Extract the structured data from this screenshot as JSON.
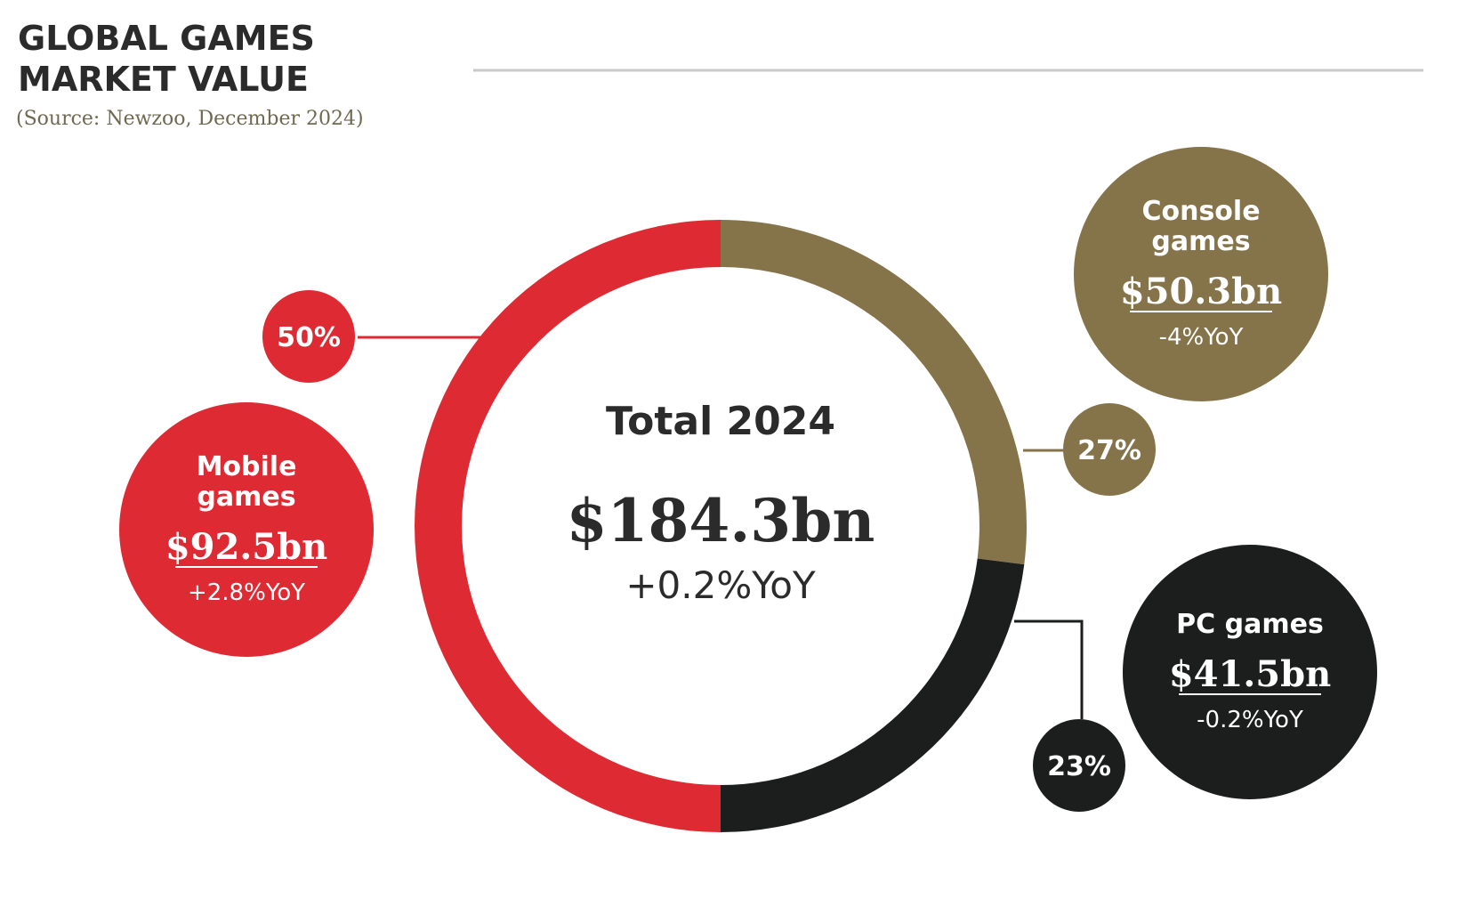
{
  "header": {
    "title_line1": "GLOBAL GAMES",
    "title_line2": "MARKET VALUE",
    "source": "(Source: Newzoo, December 2024)"
  },
  "center": {
    "label": "Total 2024",
    "value": "$184.3bn",
    "yoy": "+0.2%YoY"
  },
  "chart_data": {
    "type": "pie",
    "title": "GLOBAL GAMES MARKET VALUE",
    "subtitle": "(Source: Newzoo, December 2024)",
    "total": 184.3,
    "total_label": "$184.3bn",
    "total_yoy": "+0.2%YoY",
    "unit": "bn USD",
    "series": [
      {
        "key": "console",
        "name": "Console games",
        "name_lines": [
          "Console",
          "games"
        ],
        "value": 50.3,
        "value_label": "$50.3bn",
        "share": 27,
        "share_label": "27%",
        "yoy": "-4%YoY",
        "color": "#857349"
      },
      {
        "key": "pc",
        "name": "PC games",
        "name_lines": [
          "PC games"
        ],
        "value": 41.5,
        "value_label": "$41.5bn",
        "share": 23,
        "share_label": "23%",
        "yoy": "-0.2%YoY",
        "color": "#1b1e1c"
      },
      {
        "key": "mobile",
        "name": "Mobile games",
        "name_lines": [
          "Mobile",
          "games"
        ],
        "value": 92.5,
        "value_label": "$92.5bn",
        "share": 50,
        "share_label": "50%",
        "yoy": "+2.8%YoY",
        "color": "#de2a32"
      }
    ]
  }
}
